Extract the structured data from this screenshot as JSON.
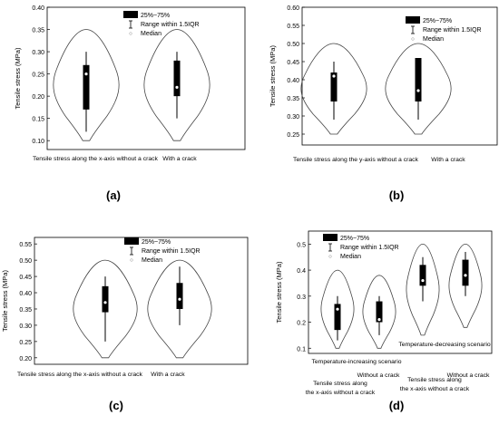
{
  "chart_data": [
    {
      "type": "violin",
      "panel_label": "(a)",
      "ylabel": "Tensile stress (MPa)",
      "ylim": [
        0.08,
        0.4
      ],
      "yticks": [
        0.1,
        0.15,
        0.2,
        0.25,
        0.3,
        0.35,
        0.4
      ],
      "ytick_labels": [
        "0.10",
        "0.15",
        "0.20",
        "0.25",
        "0.30",
        "0.35",
        "0.40"
      ],
      "categories": [
        "Tensile stress along the x-axis without a crack",
        "With a crack"
      ],
      "legend": {
        "box": "25%~75%",
        "whisker": "Range within 1.5IQR",
        "median": "Median"
      },
      "violins": [
        {
          "min": 0.1,
          "max": 0.35,
          "q1": 0.17,
          "q3": 0.27,
          "wlo": 0.12,
          "whi": 0.3,
          "median": 0.25
        },
        {
          "min": 0.1,
          "max": 0.35,
          "q1": 0.2,
          "q3": 0.28,
          "wlo": 0.15,
          "whi": 0.3,
          "median": 0.22
        }
      ]
    },
    {
      "type": "violin",
      "panel_label": "(b)",
      "ylabel": "Tensile stress (MPa)",
      "ylim": [
        0.22,
        0.6
      ],
      "yticks": [
        0.25,
        0.3,
        0.35,
        0.4,
        0.45,
        0.5,
        0.55,
        0.6
      ],
      "ytick_labels": [
        "0.25",
        "0.30",
        "0.35",
        "0.40",
        "0.45",
        "0.50",
        "0.55",
        "0.60"
      ],
      "categories": [
        "Tensile stress along the y-axis without a crack",
        "With a crack"
      ],
      "legend": {
        "box": "25%~75%",
        "whisker": "Range within 1.5IQR",
        "median": "Median"
      },
      "violins": [
        {
          "min": 0.25,
          "max": 0.5,
          "q1": 0.34,
          "q3": 0.42,
          "wlo": 0.29,
          "whi": 0.45,
          "median": 0.41
        },
        {
          "min": 0.25,
          "max": 0.5,
          "q1": 0.34,
          "q3": 0.46,
          "wlo": 0.29,
          "whi": 0.46,
          "median": 0.37
        }
      ]
    },
    {
      "type": "violin",
      "panel_label": "(c)",
      "ylabel": "Tensile stress (MPa)",
      "ylim": [
        0.18,
        0.57
      ],
      "yticks": [
        0.2,
        0.25,
        0.3,
        0.35,
        0.4,
        0.45,
        0.5,
        0.55
      ],
      "ytick_labels": [
        "0.20",
        "0.25",
        "0.30",
        "0.35",
        "0.40",
        "0.45",
        "0.50",
        "0.55"
      ],
      "categories": [
        "Tensile stress along the x-axis without a crack",
        "With a crack"
      ],
      "legend": {
        "box": "25%~75%",
        "whisker": "Range within 1.5IQR",
        "median": "Median"
      },
      "violins": [
        {
          "min": 0.2,
          "max": 0.5,
          "q1": 0.34,
          "q3": 0.42,
          "wlo": 0.25,
          "whi": 0.45,
          "median": 0.37
        },
        {
          "min": 0.2,
          "max": 0.5,
          "q1": 0.35,
          "q3": 0.43,
          "wlo": 0.3,
          "whi": 0.48,
          "median": 0.38
        }
      ]
    },
    {
      "type": "violin",
      "panel_label": "(d)",
      "ylabel": "Tensile stress (MPa)",
      "ylim": [
        0.08,
        0.55
      ],
      "yticks": [
        0.1,
        0.2,
        0.3,
        0.4,
        0.5
      ],
      "ytick_labels": [
        "0.1",
        "0.2",
        "0.3",
        "0.4",
        "0.5"
      ],
      "categories": [
        "Tensile stress along the x-axis without a crack",
        "Without a crack",
        "Tensile stress along the x-axis without a crack",
        "Without a crack"
      ],
      "annotations": [
        "Temperature-increasing scenario",
        "Temperature-decreasing scenario"
      ],
      "legend": {
        "box": "25%~75%",
        "whisker": "Range within 1.5IQR",
        "median": "Median"
      },
      "violins": [
        {
          "min": 0.1,
          "max": 0.4,
          "q1": 0.17,
          "q3": 0.27,
          "wlo": 0.13,
          "whi": 0.3,
          "median": 0.25
        },
        {
          "min": 0.1,
          "max": 0.38,
          "q1": 0.2,
          "q3": 0.28,
          "wlo": 0.15,
          "whi": 0.3,
          "median": 0.21
        },
        {
          "min": 0.15,
          "max": 0.5,
          "q1": 0.34,
          "q3": 0.42,
          "wlo": 0.28,
          "whi": 0.45,
          "median": 0.36
        },
        {
          "min": 0.18,
          "max": 0.5,
          "q1": 0.34,
          "q3": 0.44,
          "wlo": 0.3,
          "whi": 0.47,
          "median": 0.38
        }
      ]
    }
  ]
}
